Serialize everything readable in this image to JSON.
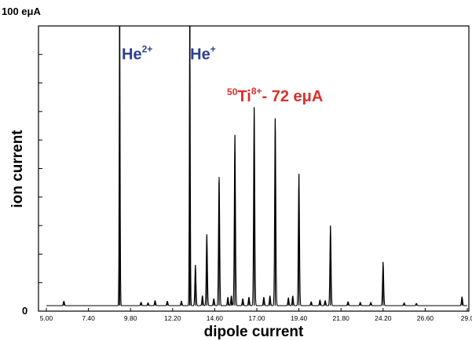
{
  "chart_data": {
    "type": "line",
    "title": "",
    "xlabel": "dipole current",
    "ylabel": "ion current",
    "y_tick_labels": [
      "0",
      "100 eμA"
    ],
    "ylim": [
      0,
      100
    ],
    "xlim": [
      5.0,
      29.0
    ],
    "x_tick_labels": [
      "5.00",
      "7.40",
      "9.80",
      "12.20",
      "14.60",
      "17.00",
      "19.40",
      "21.80",
      "24.20",
      "26.60",
      "29.0"
    ],
    "grid": false,
    "annotations": [
      {
        "text": "He",
        "sup": "2+",
        "color": "#2b3f91",
        "x": 9.3,
        "y": 88
      },
      {
        "text": "He",
        "sup": "+",
        "color": "#2b3f91",
        "x": 13.2,
        "y": 88
      },
      {
        "text": "Ti",
        "pre_sup": "50",
        "sup": "8+",
        "suffix": "-  72 eμA",
        "color": "#d9302c",
        "x": 15.3,
        "y": 73
      }
    ],
    "peaks": [
      {
        "x": 6.0,
        "y": 1.6
      },
      {
        "x": 9.18,
        "y": 100
      },
      {
        "x": 10.4,
        "y": 1.2
      },
      {
        "x": 10.8,
        "y": 1.0
      },
      {
        "x": 11.2,
        "y": 1.8
      },
      {
        "x": 11.9,
        "y": 1.6
      },
      {
        "x": 12.7,
        "y": 1.6
      },
      {
        "x": 13.18,
        "y": 100
      },
      {
        "x": 13.5,
        "y": 14.5
      },
      {
        "x": 13.9,
        "y": 3.5
      },
      {
        "x": 14.15,
        "y": 25.5
      },
      {
        "x": 14.55,
        "y": 2.5
      },
      {
        "x": 14.85,
        "y": 46
      },
      {
        "x": 15.35,
        "y": 3.0
      },
      {
        "x": 15.55,
        "y": 3.5
      },
      {
        "x": 15.75,
        "y": 61
      },
      {
        "x": 16.2,
        "y": 2.5
      },
      {
        "x": 16.55,
        "y": 3.0
      },
      {
        "x": 16.85,
        "y": 71
      },
      {
        "x": 17.4,
        "y": 3.0
      },
      {
        "x": 17.75,
        "y": 3.5
      },
      {
        "x": 18.05,
        "y": 67
      },
      {
        "x": 18.8,
        "y": 2.8
      },
      {
        "x": 19.05,
        "y": 3.5
      },
      {
        "x": 19.4,
        "y": 47
      },
      {
        "x": 20.1,
        "y": 1.4
      },
      {
        "x": 20.6,
        "y": 2.0
      },
      {
        "x": 20.9,
        "y": 1.8
      },
      {
        "x": 21.2,
        "y": 28.5
      },
      {
        "x": 22.2,
        "y": 1.4
      },
      {
        "x": 22.9,
        "y": 1.2
      },
      {
        "x": 23.5,
        "y": 1.2
      },
      {
        "x": 24.2,
        "y": 15.5
      },
      {
        "x": 25.4,
        "y": 1.0
      },
      {
        "x": 26.1,
        "y": 0.8
      },
      {
        "x": 28.7,
        "y": 3.2
      }
    ]
  }
}
